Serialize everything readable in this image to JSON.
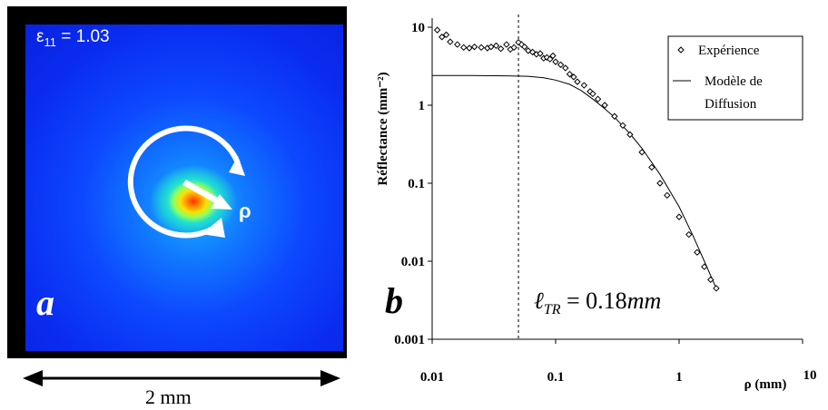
{
  "panel_a": {
    "letter": "a",
    "epsilon_symbol": "ε",
    "epsilon_sub": "11",
    "epsilon_value": " = 1.03",
    "rho_label": "ρ",
    "scale_label": "2 mm"
  },
  "panel_b": {
    "letter": "b",
    "annotation_symbol": "ℓ",
    "annotation_sub": "TR",
    "annotation_value": " = 0.18",
    "annotation_unit": "mm"
  },
  "chart_data": {
    "type": "scatter",
    "ylabel": "Réflectance (mm⁻²)",
    "xlabel": "ρ (mm)",
    "xscale": "log",
    "yscale": "log",
    "xlim": [
      0.01,
      10
    ],
    "ylim": [
      0.001,
      10
    ],
    "x_tick_labels": [
      "0.01",
      "0.1",
      "1",
      "10"
    ],
    "y_tick_labels": [
      "0.001",
      "0.01",
      "0.1",
      "1",
      "10"
    ],
    "legend_position": "top-right",
    "vertical_line_x": 0.05,
    "series": [
      {
        "name": "Expérience",
        "marker": "diamond",
        "x": [
          0.011,
          0.012,
          0.013,
          0.014,
          0.016,
          0.018,
          0.02,
          0.022,
          0.025,
          0.028,
          0.03,
          0.033,
          0.036,
          0.04,
          0.043,
          0.046,
          0.05,
          0.053,
          0.056,
          0.06,
          0.065,
          0.07,
          0.075,
          0.08,
          0.085,
          0.09,
          0.095,
          0.1,
          0.11,
          0.12,
          0.13,
          0.14,
          0.15,
          0.17,
          0.19,
          0.2,
          0.22,
          0.25,
          0.3,
          0.35,
          0.4,
          0.5,
          0.6,
          0.7,
          0.8,
          1.0,
          1.2,
          1.4,
          1.6,
          1.8,
          2.0
        ],
        "y": [
          9.2,
          7.5,
          8.0,
          6.5,
          6.0,
          5.5,
          5.4,
          5.6,
          5.5,
          5.4,
          5.6,
          5.8,
          5.3,
          6.0,
          5.2,
          5.5,
          6.4,
          6.0,
          5.6,
          5.0,
          4.8,
          4.5,
          4.6,
          4.0,
          4.1,
          3.9,
          4.3,
          3.6,
          3.3,
          3.0,
          2.5,
          2.3,
          2.0,
          1.8,
          1.5,
          1.4,
          1.2,
          1.0,
          0.72,
          0.55,
          0.42,
          0.25,
          0.16,
          0.1,
          0.07,
          0.037,
          0.022,
          0.013,
          0.0085,
          0.0058,
          0.0045
        ]
      },
      {
        "name": "Modèle de Diffusion",
        "marker": "line",
        "x": [
          0.01,
          0.02,
          0.04,
          0.06,
          0.08,
          0.1,
          0.13,
          0.16,
          0.2,
          0.25,
          0.3,
          0.4,
          0.5,
          0.7,
          1.0,
          1.3,
          1.6,
          2.0
        ],
        "y": [
          2.4,
          2.4,
          2.38,
          2.35,
          2.25,
          2.1,
          1.85,
          1.55,
          1.2,
          0.9,
          0.7,
          0.43,
          0.28,
          0.13,
          0.05,
          0.021,
          0.01,
          0.0045
        ]
      }
    ]
  }
}
